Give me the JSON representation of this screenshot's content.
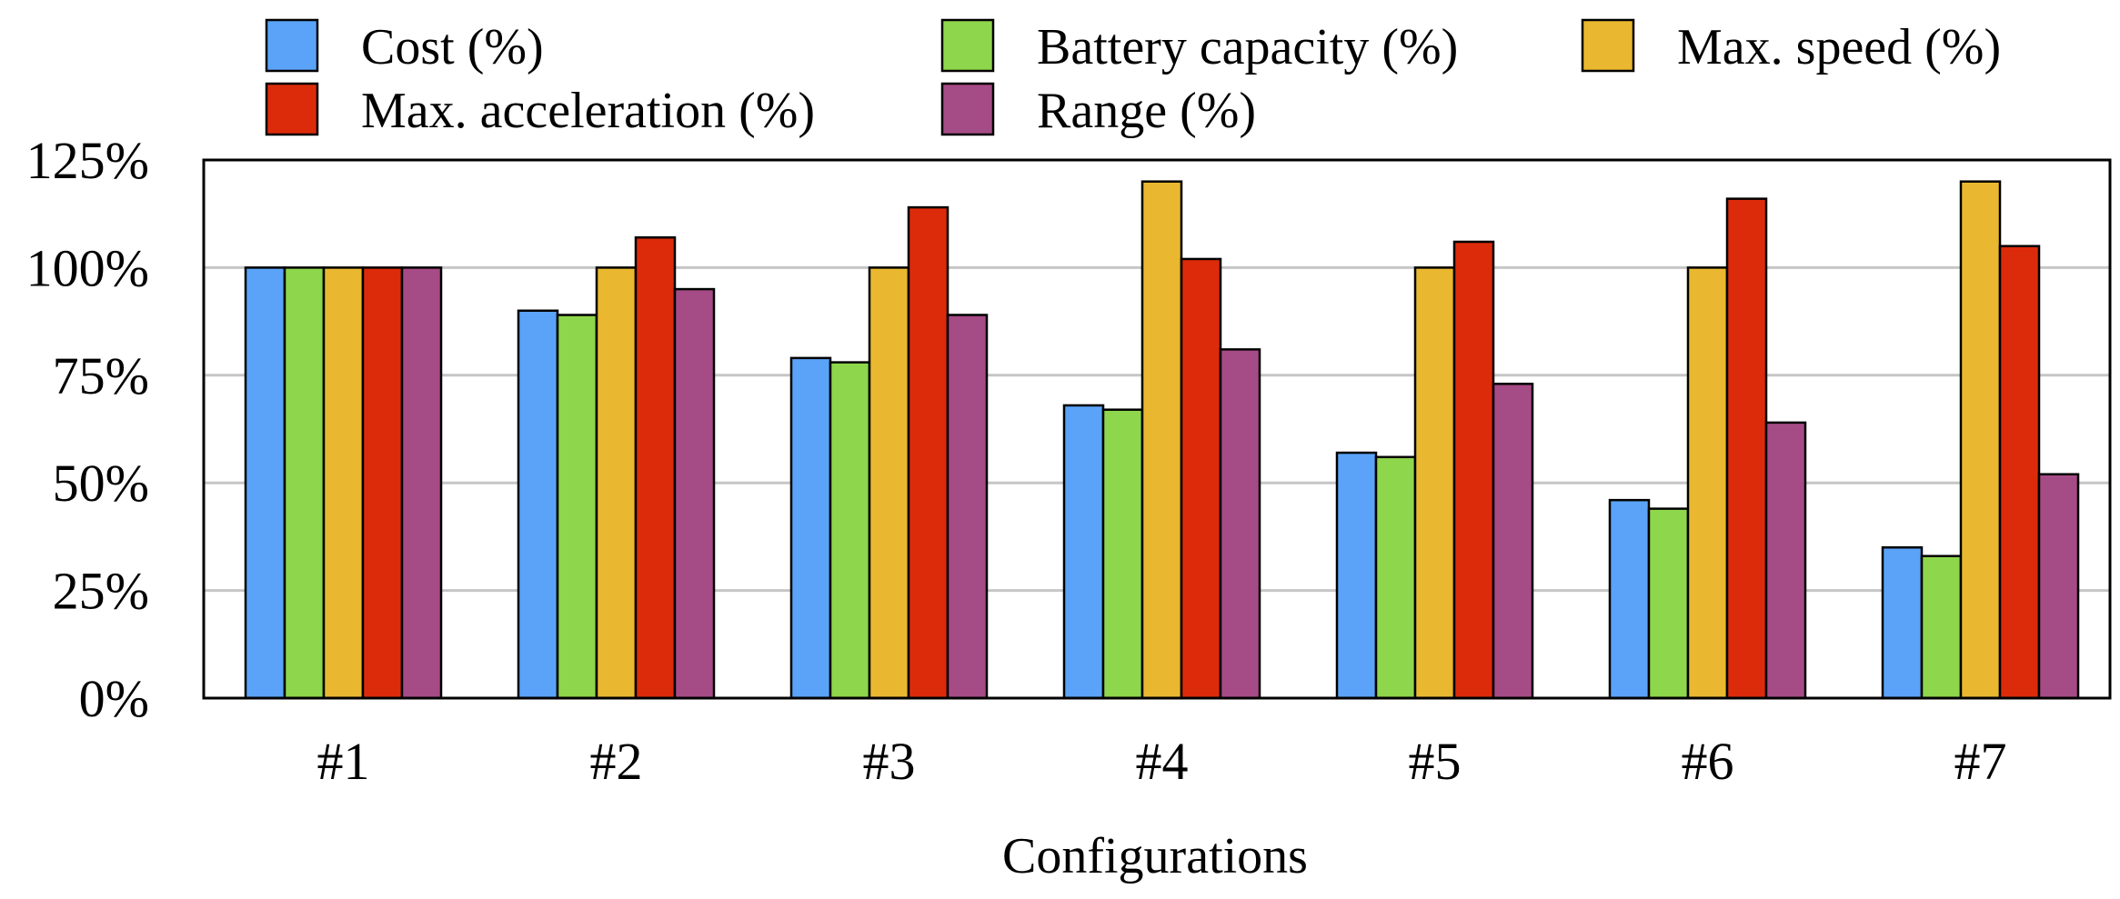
{
  "chart_data": {
    "type": "bar",
    "xlabel": "Configurations",
    "ylabel": "",
    "categories": [
      "#1",
      "#2",
      "#3",
      "#4",
      "#5",
      "#6",
      "#7"
    ],
    "ylim": [
      0,
      125
    ],
    "yticks": [
      0,
      25,
      50,
      75,
      100,
      125
    ],
    "ytick_labels": [
      "0%",
      "25%",
      "50%",
      "75%",
      "100%",
      "125%"
    ],
    "grid": "horizontal",
    "legend_position": "top",
    "series": [
      {
        "name": "Cost (%)",
        "color": "#5aa3f8",
        "values": [
          100,
          90,
          79,
          68,
          57,
          46,
          35
        ]
      },
      {
        "name": "Battery capacity (%)",
        "color": "#8ed64b",
        "values": [
          100,
          89,
          78,
          67,
          56,
          44,
          33
        ]
      },
      {
        "name": "Max. speed (%)",
        "color": "#e9b830",
        "values": [
          100,
          100,
          100,
          120,
          100,
          100,
          120
        ]
      },
      {
        "name": "Max. acceleration (%)",
        "color": "#dc2b0a",
        "values": [
          100,
          107,
          114,
          102,
          106,
          116,
          105
        ]
      },
      {
        "name": "Range (%)",
        "color": "#a54b85",
        "values": [
          100,
          95,
          89,
          81,
          73,
          64,
          52
        ]
      }
    ]
  }
}
